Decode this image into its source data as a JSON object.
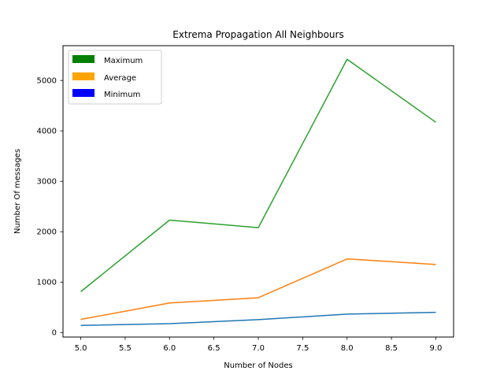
{
  "chart_data": {
    "type": "line",
    "title": "Extrema Propagation All Neighbours",
    "xlabel": "Number of Nodes",
    "ylabel": "Number Of messages",
    "x": [
      5.0,
      6.0,
      7.0,
      8.0,
      9.0
    ],
    "xlim": [
      4.8,
      9.2
    ],
    "ylim": [
      -90,
      5690
    ],
    "xticks": [
      5.0,
      5.5,
      6.0,
      6.5,
      7.0,
      7.5,
      8.0,
      8.5,
      9.0
    ],
    "xtick_labels": [
      "5.0",
      "5.5",
      "6.0",
      "6.5",
      "7.0",
      "7.5",
      "8.0",
      "8.5",
      "9.0"
    ],
    "yticks": [
      0,
      1000,
      2000,
      3000,
      4000,
      5000
    ],
    "ytick_labels": [
      "0",
      "1000",
      "2000",
      "3000",
      "4000",
      "5000"
    ],
    "grid": false,
    "legend_position": "top-left",
    "legend": [
      {
        "label": "Maximum",
        "color": "#008000"
      },
      {
        "label": "Average",
        "color": "#ffa500"
      },
      {
        "label": "Minimum",
        "color": "#0000ff"
      }
    ],
    "series": [
      {
        "key": "min",
        "color": "#1f77b4",
        "values": [
          140,
          175,
          255,
          365,
          400
        ]
      },
      {
        "key": "avg",
        "color": "#ff7f0e",
        "values": [
          260,
          585,
          690,
          1460,
          1350
        ]
      },
      {
        "key": "max",
        "color": "#2ca02c",
        "values": [
          810,
          2230,
          2080,
          5420,
          4170
        ]
      }
    ]
  }
}
